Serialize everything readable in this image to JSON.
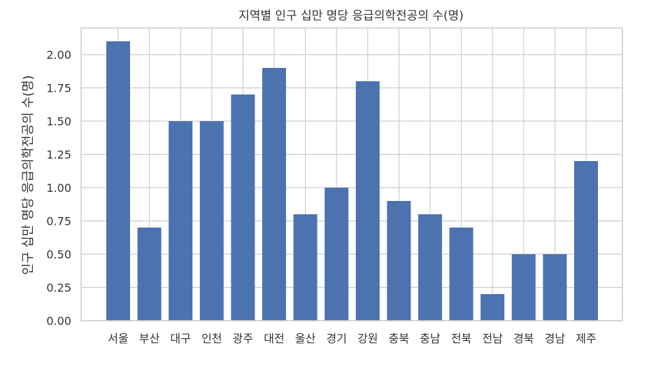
{
  "chart_data": {
    "type": "bar",
    "title": "지역별 인구 십만 명당 응급의학전공의 수(명)",
    "xlabel": "",
    "ylabel": "인구 십만 명당 응급의학전공의 수(명)",
    "categories": [
      "서울",
      "부산",
      "대구",
      "인천",
      "광주",
      "대전",
      "울산",
      "경기",
      "강원",
      "충북",
      "충남",
      "전북",
      "전남",
      "경북",
      "경남",
      "제주"
    ],
    "values": [
      2.1,
      0.7,
      1.5,
      1.5,
      1.7,
      1.9,
      0.8,
      1.0,
      1.8,
      0.9,
      0.8,
      0.7,
      0.2,
      0.5,
      0.5,
      1.2
    ],
    "ylim": [
      0,
      2.2
    ],
    "yticks": [
      "0.00",
      "0.25",
      "0.50",
      "0.75",
      "1.00",
      "1.25",
      "1.50",
      "1.75",
      "2.00"
    ],
    "grid": true,
    "bar_color": "#4c72b0",
    "grid_color": "#cccccc",
    "frame_color": "#cccccc"
  }
}
